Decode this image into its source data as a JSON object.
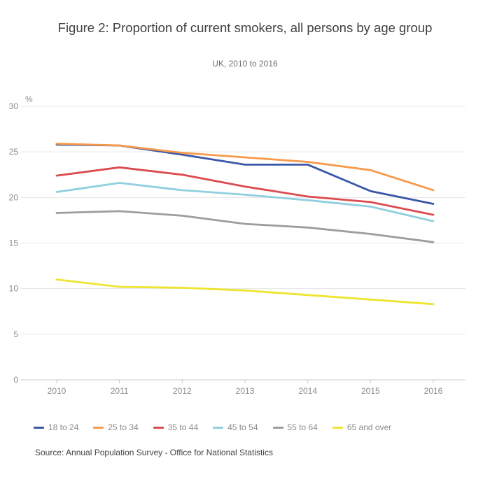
{
  "header": {
    "title": "Figure 2: Proportion of current smokers, all persons by age group",
    "subtitle": "UK, 2010 to 2016"
  },
  "footer": {
    "source": "Source: Annual Population Survey - Office for National Statistics"
  },
  "chart_data": {
    "type": "line",
    "title": "Figure 2: Proportion of current smokers, all persons by age group",
    "subtitle": "UK, 2010 to 2016",
    "categories": [
      "2010",
      "2011",
      "2012",
      "2013",
      "2014",
      "2015",
      "2016"
    ],
    "series": [
      {
        "name": "18 to 24",
        "color": "#3A57A7",
        "values": [
          25.8,
          25.7,
          24.7,
          23.6,
          23.6,
          20.7,
          19.3
        ]
      },
      {
        "name": "25 to 34",
        "color": "#F79A4B",
        "values": [
          25.9,
          25.7,
          24.9,
          24.4,
          23.9,
          23.0,
          20.8
        ]
      },
      {
        "name": "35 to 44",
        "color": "#DB4A4E",
        "values": [
          22.4,
          23.3,
          22.5,
          21.2,
          20.1,
          19.5,
          18.1
        ]
      },
      {
        "name": "45 to 54",
        "color": "#8FCFE0",
        "values": [
          20.6,
          21.6,
          20.8,
          20.3,
          19.7,
          19.0,
          17.4
        ]
      },
      {
        "name": "55 to 64",
        "color": "#9D9D9D",
        "values": [
          18.3,
          18.5,
          18.0,
          17.1,
          16.7,
          16.0,
          15.1
        ]
      },
      {
        "name": "65 and over",
        "color": "#EDE531",
        "values": [
          11.0,
          10.2,
          10.1,
          9.8,
          9.3,
          8.8,
          8.3
        ]
      }
    ],
    "ylabel": "%",
    "xlabel": "",
    "ylim": [
      0,
      30
    ],
    "yticks": [
      0,
      5,
      10,
      15,
      20,
      25,
      30
    ],
    "grid": true,
    "legend_position": "bottom"
  },
  "style": {
    "grid_color": "#e6e6e6",
    "zero_line_color": "#c8c8c8",
    "tick_color": "#c8c8c8",
    "axis_label_color": "#8b8b8b"
  }
}
